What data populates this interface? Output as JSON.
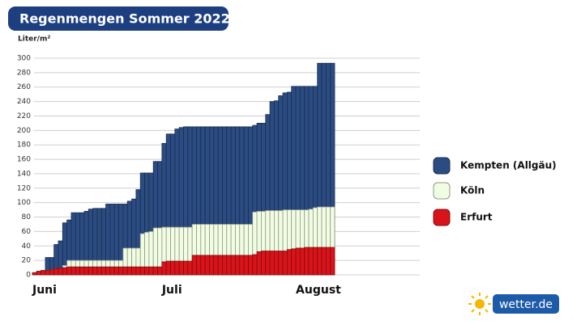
{
  "chart_data": {
    "type": "bar",
    "title": "Regenmengen Sommer 2022",
    "y_label": "Liter/m²",
    "categories": [
      "Juni",
      null,
      null,
      null,
      null,
      null,
      null,
      null,
      null,
      null,
      null,
      null,
      null,
      null,
      null,
      null,
      null,
      null,
      null,
      null,
      null,
      null,
      null,
      null,
      null,
      null,
      null,
      null,
      null,
      null,
      "Juli",
      null,
      null,
      null,
      null,
      null,
      null,
      null,
      null,
      null,
      null,
      null,
      null,
      null,
      null,
      null,
      null,
      null,
      null,
      null,
      null,
      null,
      null,
      null,
      null,
      null,
      null,
      null,
      null,
      null,
      null,
      "August",
      null,
      null,
      null,
      null,
      null,
      null,
      null,
      null
    ],
    "series": [
      {
        "name": "Kempten (Allgäu)",
        "color": "#2b4c82",
        "values": [
          3,
          5,
          6,
          24,
          24,
          42,
          47,
          72,
          76,
          86,
          86,
          86,
          88,
          91,
          92,
          92,
          92,
          98,
          98,
          98,
          98,
          98,
          102,
          105,
          118,
          141,
          141,
          141,
          157,
          157,
          182,
          195,
          195,
          202,
          204,
          205,
          205,
          205,
          205,
          205,
          205,
          205,
          205,
          205,
          205,
          205,
          205,
          205,
          205,
          205,
          205,
          207,
          210,
          210,
          222,
          240,
          241,
          248,
          252,
          253,
          261,
          261,
          261,
          261,
          261,
          261,
          293,
          293,
          293,
          293
        ]
      },
      {
        "name": "Köln",
        "color": "#f1fde2",
        "values": [
          3,
          5,
          6,
          6,
          7,
          9,
          9,
          13,
          20,
          20,
          20,
          20,
          20,
          20,
          20,
          20,
          20,
          20,
          20,
          20,
          20,
          37,
          37,
          37,
          37,
          57,
          59,
          60,
          65,
          65,
          66,
          66,
          66,
          66,
          66,
          66,
          66,
          70,
          70,
          70,
          70,
          70,
          70,
          70,
          70,
          70,
          70,
          70,
          70,
          70,
          70,
          87,
          88,
          88,
          89,
          89,
          89,
          89,
          90,
          90,
          90,
          90,
          90,
          90,
          91,
          93,
          94,
          94,
          94,
          94
        ]
      },
      {
        "name": "Erfurt",
        "color": "#d8141a",
        "values": [
          3,
          5,
          6,
          6,
          7,
          9,
          9,
          10,
          11,
          11,
          11,
          11,
          11,
          11,
          11,
          11,
          11,
          11,
          11,
          11,
          11,
          11,
          11,
          11,
          11,
          11,
          11,
          11,
          11,
          11,
          18,
          19,
          19,
          19,
          19,
          19,
          19,
          27,
          27,
          27,
          27,
          27,
          27,
          27,
          27,
          27,
          27,
          27,
          27,
          27,
          27,
          28,
          32,
          33,
          33,
          33,
          33,
          33,
          33,
          35,
          36,
          37,
          37,
          38,
          38,
          38,
          38,
          38,
          38,
          38
        ]
      }
    ],
    "ylim": [
      0,
      300
    ],
    "yticks": [
      0,
      20,
      40,
      60,
      80,
      100,
      120,
      140,
      160,
      180,
      200,
      220,
      240,
      260,
      280,
      300
    ],
    "grid": true,
    "legend": "right"
  },
  "logo": "wetter.de"
}
